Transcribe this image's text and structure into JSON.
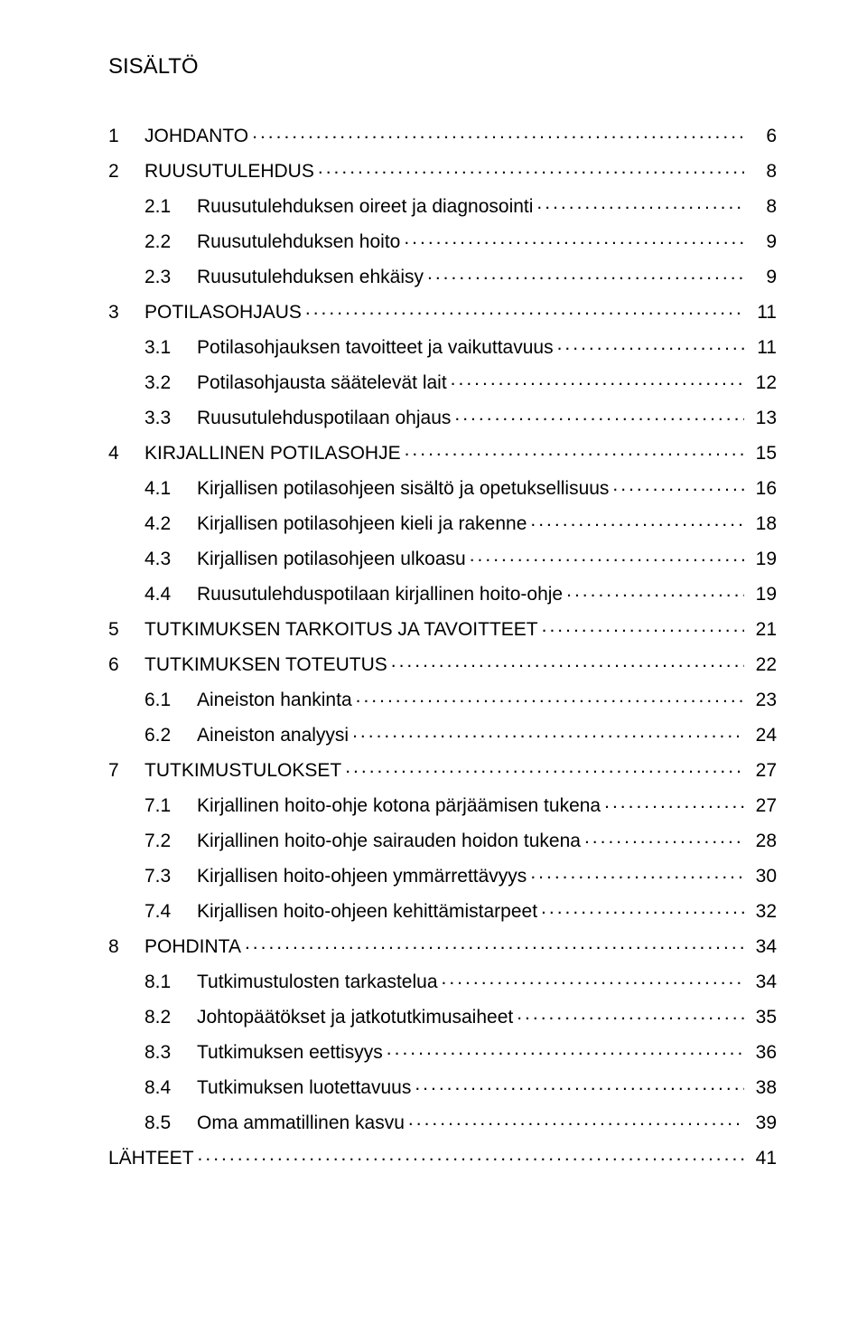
{
  "title": "SISÄLTÖ",
  "font": {
    "family": "Arial",
    "size_body": 21,
    "size_title": 24,
    "color": "#000000"
  },
  "page_background": "#ffffff",
  "leader_char": ".",
  "entries": [
    {
      "level": 1,
      "num": "1",
      "label": "JOHDANTO",
      "page": "6"
    },
    {
      "level": 1,
      "num": "2",
      "label": "RUUSUTULEHDUS",
      "page": "8"
    },
    {
      "level": 2,
      "num": "2.1",
      "label": "Ruusutulehduksen oireet ja diagnosointi",
      "page": "8"
    },
    {
      "level": 2,
      "num": "2.2",
      "label": "Ruusutulehduksen hoito",
      "page": "9"
    },
    {
      "level": 2,
      "num": "2.3",
      "label": "Ruusutulehduksen ehkäisy",
      "page": "9"
    },
    {
      "level": 1,
      "num": "3",
      "label": "POTILASOHJAUS",
      "page": "11"
    },
    {
      "level": 2,
      "num": "3.1",
      "label": "Potilasohjauksen tavoitteet ja vaikuttavuus",
      "page": "11"
    },
    {
      "level": 2,
      "num": "3.2",
      "label": "Potilasohjausta säätelevät lait",
      "page": "12"
    },
    {
      "level": 2,
      "num": "3.3",
      "label": "Ruusutulehduspotilaan ohjaus",
      "page": "13"
    },
    {
      "level": 1,
      "num": "4",
      "label": "KIRJALLINEN POTILASOHJE",
      "page": "15"
    },
    {
      "level": 2,
      "num": "4.1",
      "label": "Kirjallisen potilasohjeen sisältö ja opetuksellisuus",
      "page": "16"
    },
    {
      "level": 2,
      "num": "4.2",
      "label": "Kirjallisen potilasohjeen kieli ja rakenne",
      "page": "18"
    },
    {
      "level": 2,
      "num": "4.3",
      "label": "Kirjallisen potilasohjeen ulkoasu",
      "page": "19"
    },
    {
      "level": 2,
      "num": "4.4",
      "label": "Ruusutulehduspotilaan kirjallinen hoito-ohje",
      "page": "19"
    },
    {
      "level": 1,
      "num": "5",
      "label": "TUTKIMUKSEN TARKOITUS JA TAVOITTEET",
      "page": "21"
    },
    {
      "level": 1,
      "num": "6",
      "label": "TUTKIMUKSEN TOTEUTUS",
      "page": "22"
    },
    {
      "level": 2,
      "num": "6.1",
      "label": "Aineiston hankinta",
      "page": "23"
    },
    {
      "level": 2,
      "num": "6.2",
      "label": "Aineiston analyysi",
      "page": "24"
    },
    {
      "level": 1,
      "num": "7",
      "label": "TUTKIMUSTULOKSET",
      "page": "27"
    },
    {
      "level": 2,
      "num": "7.1",
      "label": "Kirjallinen hoito-ohje kotona pärjäämisen tukena",
      "page": "27"
    },
    {
      "level": 2,
      "num": "7.2",
      "label": "Kirjallinen hoito-ohje sairauden hoidon tukena",
      "page": "28"
    },
    {
      "level": 2,
      "num": "7.3",
      "label": "Kirjallisen hoito-ohjeen ymmärrettävyys",
      "page": "30"
    },
    {
      "level": 2,
      "num": "7.4",
      "label": "Kirjallisen hoito-ohjeen kehittämistarpeet",
      "page": "32"
    },
    {
      "level": 1,
      "num": "8",
      "label": "POHDINTA",
      "page": "34"
    },
    {
      "level": 2,
      "num": "8.1",
      "label": "Tutkimustulosten tarkastelua",
      "page": "34"
    },
    {
      "level": 2,
      "num": "8.2",
      "label": "Johtopäätökset ja jatkotutkimusaiheet",
      "page": "35"
    },
    {
      "level": 2,
      "num": "8.3",
      "label": "Tutkimuksen eettisyys",
      "page": "36"
    },
    {
      "level": 2,
      "num": "8.4",
      "label": "Tutkimuksen luotettavuus",
      "page": "38"
    },
    {
      "level": 2,
      "num": "8.5",
      "label": "Oma ammatillinen kasvu",
      "page": "39"
    },
    {
      "level": 0,
      "num": "",
      "label": "LÄHTEET",
      "page": "41"
    }
  ]
}
